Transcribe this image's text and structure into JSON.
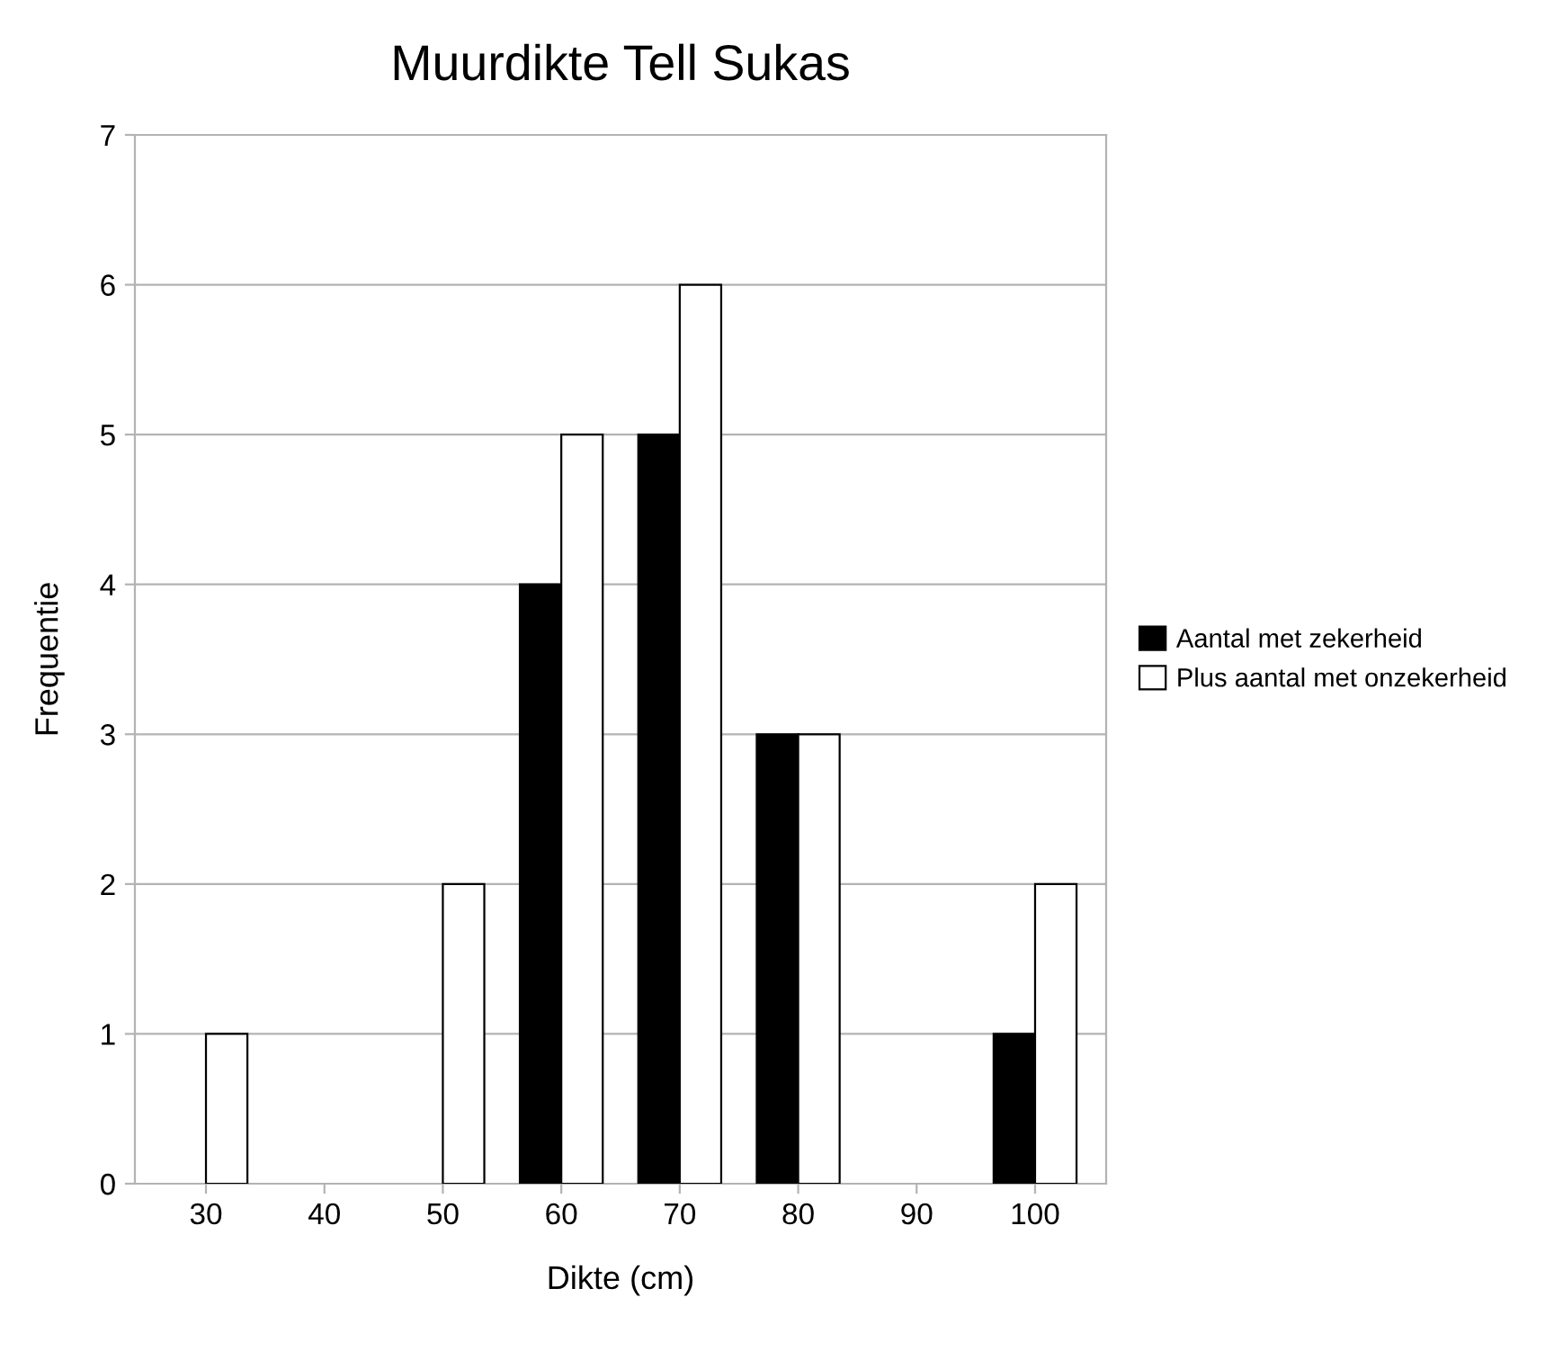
{
  "chart_data": {
    "type": "bar",
    "title": "Muurdikte Tell Sukas",
    "xlabel": "Dikte (cm)",
    "ylabel": "Frequentie",
    "categories": [
      "30",
      "40",
      "50",
      "60",
      "70",
      "80",
      "90",
      "100"
    ],
    "series": [
      {
        "name": "Aantal met zekerheid",
        "color": "#000000",
        "values": [
          0,
          0,
          0,
          4,
          5,
          3,
          0,
          1
        ]
      },
      {
        "name": "Plus aantal met onzekerheid",
        "color": "#ffffff",
        "values": [
          1,
          0,
          2,
          5,
          6,
          3,
          0,
          2
        ]
      }
    ],
    "ylim": [
      0,
      7
    ],
    "yticks": [
      0,
      1,
      2,
      3,
      4,
      5,
      6,
      7
    ],
    "grid": "y",
    "legend": "right"
  }
}
